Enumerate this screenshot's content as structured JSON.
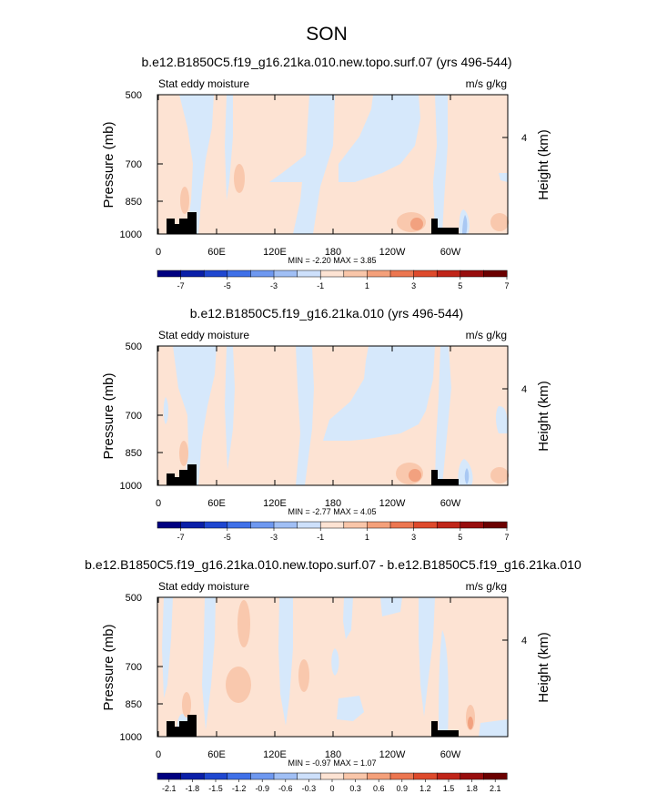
{
  "main_title": "SON",
  "chart_data": [
    {
      "type": "heatmap",
      "title": "b.e12.B1850C5.f19_g16.21ka.010.new.topo.surf.07 (yrs 496-544)",
      "left_label": "Stat eddy moisture",
      "right_label": "m/s g/kg",
      "ylabel": "Pressure (mb)",
      "ylabel_right": "Height (km)",
      "yticks": [
        "500",
        "700",
        "850",
        "1000"
      ],
      "yticks_right": [
        "4"
      ],
      "xticks": [
        "0",
        "60E",
        "120E",
        "180",
        "120W",
        "60W"
      ],
      "stats": "MIN =  -2.20  MAX =   3.85",
      "colorbar_labels": [
        "-7",
        "-5",
        "-3",
        "-1",
        "1",
        "3",
        "5",
        "7"
      ]
    },
    {
      "type": "heatmap",
      "title": "b.e12.B1850C5.f19_g16.21ka.010 (yrs 496-544)",
      "left_label": "Stat eddy moisture",
      "right_label": "m/s g/kg",
      "ylabel": "Pressure (mb)",
      "ylabel_right": "Height (km)",
      "yticks": [
        "500",
        "700",
        "850",
        "1000"
      ],
      "yticks_right": [
        "4"
      ],
      "xticks": [
        "0",
        "60E",
        "120E",
        "180",
        "120W",
        "60W"
      ],
      "stats": "MIN =  -2.77  MAX =   4.05",
      "colorbar_labels": [
        "-7",
        "-5",
        "-3",
        "-1",
        "1",
        "3",
        "5",
        "7"
      ]
    },
    {
      "type": "heatmap",
      "title": "b.e12.B1850C5.f19_g16.21ka.010.new.topo.surf.07 - b.e12.B1850C5.f19_g16.21ka.010",
      "left_label": "Stat eddy moisture",
      "right_label": "m/s g/kg",
      "ylabel": "Pressure (mb)",
      "ylabel_right": "Height (km)",
      "yticks": [
        "500",
        "700",
        "850",
        "1000"
      ],
      "yticks_right": [
        "4"
      ],
      "xticks": [
        "0",
        "60E",
        "120E",
        "180",
        "120W",
        "60W"
      ],
      "stats": "MIN =  -0.97  MAX =   1.07",
      "colorbar_labels": [
        "-2.1",
        "-1.8",
        "-1.5",
        "-1.2",
        "-0.9",
        "-0.6",
        "-0.3",
        "0",
        "0.3",
        "0.6",
        "0.9",
        "1.2",
        "1.5",
        "1.8",
        "2.1"
      ]
    }
  ],
  "colors": {
    "background_field": "#fde3d3",
    "light_blue": "#d6e8fb",
    "mid_blue": "#a9c8f3",
    "light_red": "#f9c8ad",
    "mid_red": "#f2a17f",
    "topography": "#000000",
    "colorbar": [
      "#000080",
      "#0a1fa8",
      "#1f47d0",
      "#3f70e8",
      "#6e98f0",
      "#a0bff5",
      "#cde0fb",
      "#fde3d3",
      "#f9c6a9",
      "#f4a07a",
      "#ec7650",
      "#de4a2c",
      "#c02519",
      "#980d0d",
      "#6b0000"
    ]
  }
}
